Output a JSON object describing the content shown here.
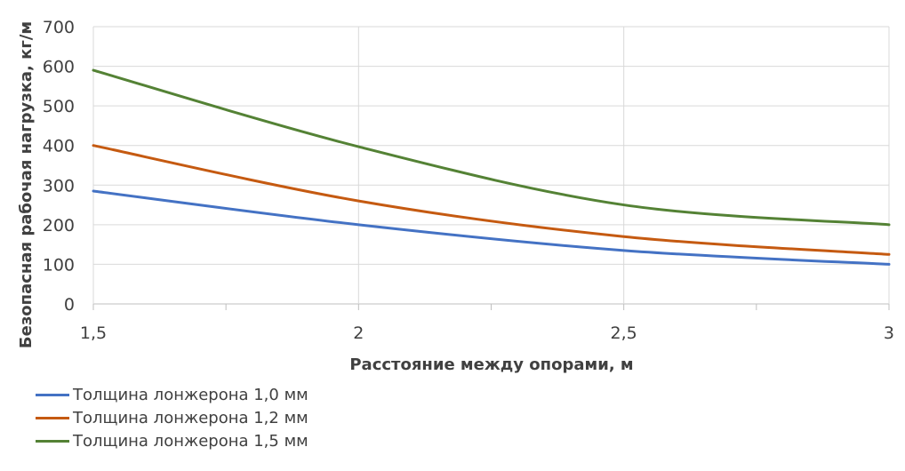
{
  "chart_data": {
    "type": "line",
    "title": "",
    "xlabel": "Расстояние между опорами, м",
    "ylabel": "Безопасная рабочая нагрузка, кг/м",
    "xlim": [
      1.5,
      3
    ],
    "ylim": [
      0,
      700
    ],
    "x_ticks": [
      "1,5",
      "2",
      "2,5",
      "3"
    ],
    "y_ticks": [
      "0",
      "100",
      "200",
      "300",
      "400",
      "500",
      "600",
      "700"
    ],
    "grid": true,
    "legend_position": "bottom-left",
    "series": [
      {
        "name": "Толщина лонжерона 1,0 мм",
        "color": "#4472C4",
        "x": [
          1.5,
          2,
          2.5,
          3
        ],
        "y": [
          285,
          200,
          135,
          100
        ]
      },
      {
        "name": "Толщина лонжерона 1,2 мм",
        "color": "#C55A11",
        "x": [
          1.5,
          2,
          2.5,
          3
        ],
        "y": [
          400,
          260,
          170,
          125
        ]
      },
      {
        "name": "Толщина лонжерона 1,5 мм",
        "color": "#548235",
        "x": [
          1.5,
          2,
          2.5,
          3
        ],
        "y": [
          590,
          397,
          250,
          200
        ]
      }
    ]
  }
}
